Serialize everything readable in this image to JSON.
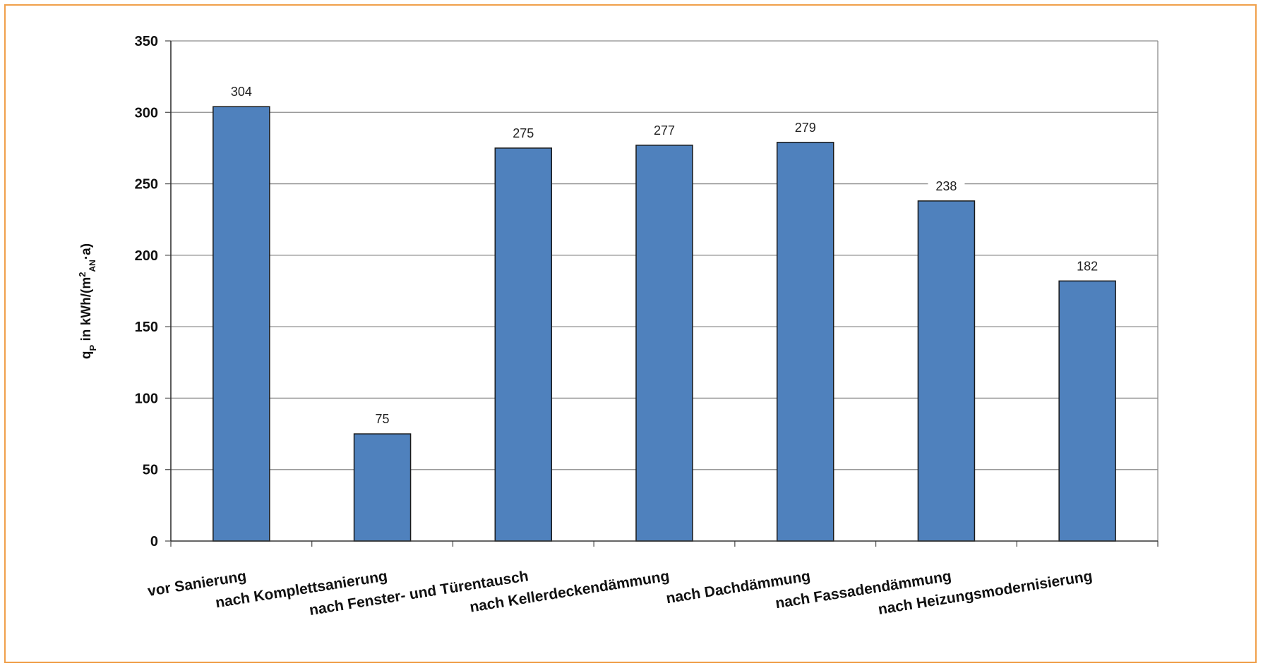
{
  "chart_data": {
    "type": "bar",
    "title": "",
    "xlabel": "",
    "ylabel": "q",
    "ylabel_sub": "P",
    "ylabel_rest": " in kWh/(m",
    "ylabel_sup": "2",
    "ylabel_sub2": "AN",
    "ylabel_tail": "·a)",
    "ylim": [
      0,
      350
    ],
    "yticks": [
      0,
      50,
      100,
      150,
      200,
      250,
      300,
      350
    ],
    "grid": true,
    "bar_color": "#4f81bd",
    "frame_color": "#f0a04b",
    "categories": [
      "vor Sanierung",
      "nach Komplettsanierung",
      "nach Fenster- und Türentausch",
      "nach Kellerdeckendämmung",
      "nach Dachdämmung",
      "nach Fassadendämmung",
      "nach Heizungsmodernisierung"
    ],
    "values": [
      304,
      75,
      275,
      277,
      279,
      238,
      182
    ]
  }
}
